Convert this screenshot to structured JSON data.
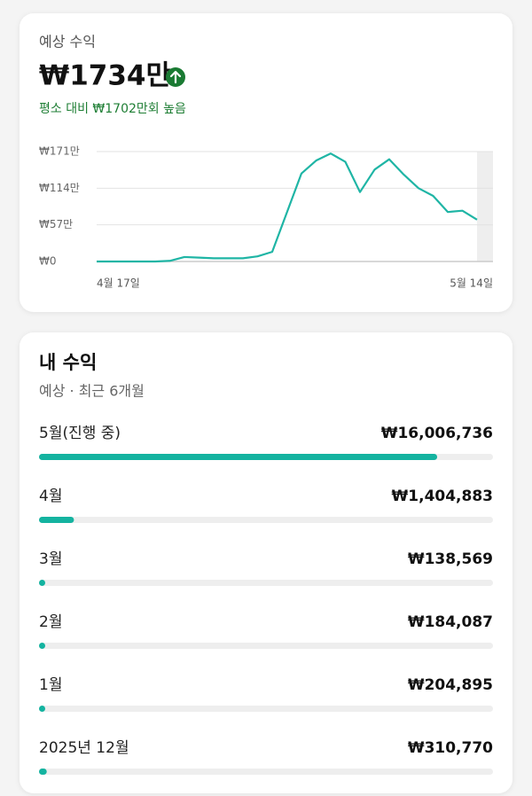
{
  "estimate": {
    "label": "예상 수익",
    "amount": "₩1734만",
    "comparison": "평소 대비 ₩1702만회 높음"
  },
  "chart_data": [
    {
      "type": "line",
      "color": "#1fb5a5",
      "grid": true,
      "categories": [
        "4월 17일",
        null,
        null,
        null,
        null,
        null,
        null,
        null,
        null,
        null,
        null,
        null,
        null,
        null,
        null,
        null,
        null,
        null,
        null,
        null,
        null,
        null,
        null,
        null,
        null,
        null,
        "5월 14일"
      ],
      "values": [
        0,
        0,
        0,
        0,
        0,
        1,
        7,
        6,
        5,
        5,
        5,
        8,
        15,
        76,
        137,
        157,
        168,
        155,
        108,
        143,
        159,
        135,
        114,
        102,
        77,
        79,
        65
      ],
      "ylim": [
        0,
        171
      ],
      "yticks": [
        {
          "value": 0,
          "label": "₩0"
        },
        {
          "value": 57,
          "label": "₩57만"
        },
        {
          "value": 114,
          "label": "₩114만"
        },
        {
          "value": 171,
          "label": "₩171만"
        }
      ]
    },
    {
      "type": "bar",
      "title": "내 수익",
      "subtitle": "예상 · 최근 6개월",
      "color": "#14b3a0",
      "categories": [
        "5월(진행 중)",
        "4월",
        "3월",
        "2월",
        "1월",
        "2025년 12월"
      ],
      "values": [
        16006736,
        1404883,
        138569,
        184087,
        204895,
        310770
      ],
      "value_labels": [
        "₩16,006,736",
        "₩1,404,883",
        "₩138,569",
        "₩184,087",
        "₩204,895",
        "₩310,770"
      ],
      "xlim": [
        0,
        18250000
      ]
    }
  ]
}
